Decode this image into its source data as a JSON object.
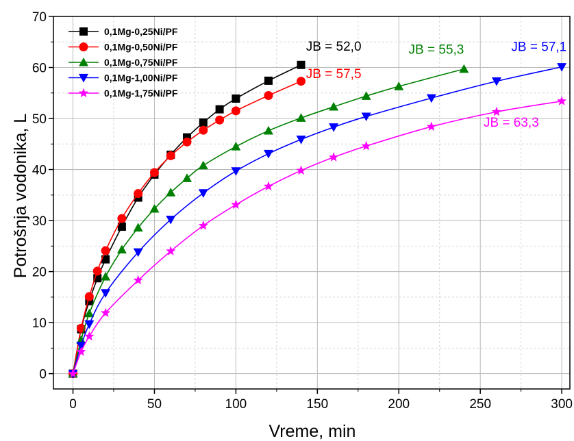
{
  "chart_data": {
    "type": "line",
    "xlabel": "Vreme, min",
    "ylabel": "Potrošnja vodonika, L",
    "xlim": [
      -12,
      305
    ],
    "ylim": [
      -3,
      70
    ],
    "x_ticks": [
      0,
      50,
      100,
      150,
      200,
      250,
      300
    ],
    "y_ticks": [
      0,
      10,
      20,
      30,
      40,
      50,
      60,
      70
    ],
    "grid": true,
    "legend_position": "top-left",
    "series": [
      {
        "name": "0,1Mg-0,25Ni/PF",
        "color": "#000000",
        "marker": "square",
        "x": [
          0,
          5,
          10,
          15,
          20,
          30,
          40,
          50,
          60,
          70,
          80,
          90,
          100,
          120,
          140
        ],
        "y": [
          0,
          8.7,
          14.2,
          18.7,
          22.4,
          28.8,
          34.5,
          39.0,
          42.9,
          46.3,
          49.2,
          51.8,
          53.9,
          57.4,
          60.5
        ]
      },
      {
        "name": "0,1Mg-0,50Ni/PF",
        "color": "#ff0000",
        "marker": "circle",
        "x": [
          0,
          5,
          10,
          15,
          20,
          30,
          40,
          50,
          60,
          70,
          80,
          90,
          100,
          120,
          140
        ],
        "y": [
          0,
          8.9,
          15.1,
          20.1,
          24.1,
          30.4,
          35.3,
          39.4,
          42.7,
          45.4,
          47.7,
          49.7,
          51.5,
          54.5,
          57.3
        ]
      },
      {
        "name": "0,1Mg-0,75Ni/PF",
        "color": "#008000",
        "marker": "triangle-up",
        "x": [
          0,
          5,
          10,
          20,
          30,
          40,
          50,
          60,
          70,
          80,
          100,
          120,
          140,
          160,
          180,
          200,
          240
        ],
        "y": [
          0,
          6.6,
          11.8,
          19.0,
          24.3,
          28.6,
          32.3,
          35.5,
          38.3,
          40.8,
          44.5,
          47.6,
          50.1,
          52.3,
          54.4,
          56.3,
          59.7
        ]
      },
      {
        "name": "0,1Mg-1,00Ni/PF",
        "color": "#0000ff",
        "marker": "triangle-down",
        "x": [
          0,
          5,
          10,
          20,
          40,
          60,
          80,
          100,
          120,
          140,
          160,
          180,
          220,
          260,
          300
        ],
        "y": [
          0,
          5.5,
          9.7,
          15.8,
          23.8,
          30.2,
          35.4,
          39.7,
          43.1,
          45.9,
          48.3,
          50.4,
          54.0,
          57.3,
          60.1
        ]
      },
      {
        "name": "0,1Mg-1,75Ni/PF",
        "color": "#ff00ff",
        "marker": "star",
        "x": [
          0,
          5,
          10,
          20,
          40,
          60,
          80,
          100,
          120,
          140,
          160,
          180,
          220,
          260,
          300
        ],
        "y": [
          0,
          4.3,
          7.3,
          11.9,
          18.3,
          24.0,
          29.0,
          33.1,
          36.7,
          39.8,
          42.4,
          44.6,
          48.4,
          51.3,
          53.4
        ]
      }
    ],
    "annotations": [
      {
        "text": "JB = 52,0",
        "x": 160,
        "y": 63.3,
        "color": "#000000"
      },
      {
        "text": "JB = 57,5",
        "x": 160,
        "y": 57.9,
        "color": "#ff0000"
      },
      {
        "text": "JB = 55,3",
        "x": 223,
        "y": 62.7,
        "color": "#008000"
      },
      {
        "text": "JB = 57,1",
        "x": 286,
        "y": 63.2,
        "color": "#0000ff"
      },
      {
        "text": "JB = 63,3",
        "x": 269,
        "y": 48.4,
        "color": "#ff00ff"
      }
    ]
  }
}
